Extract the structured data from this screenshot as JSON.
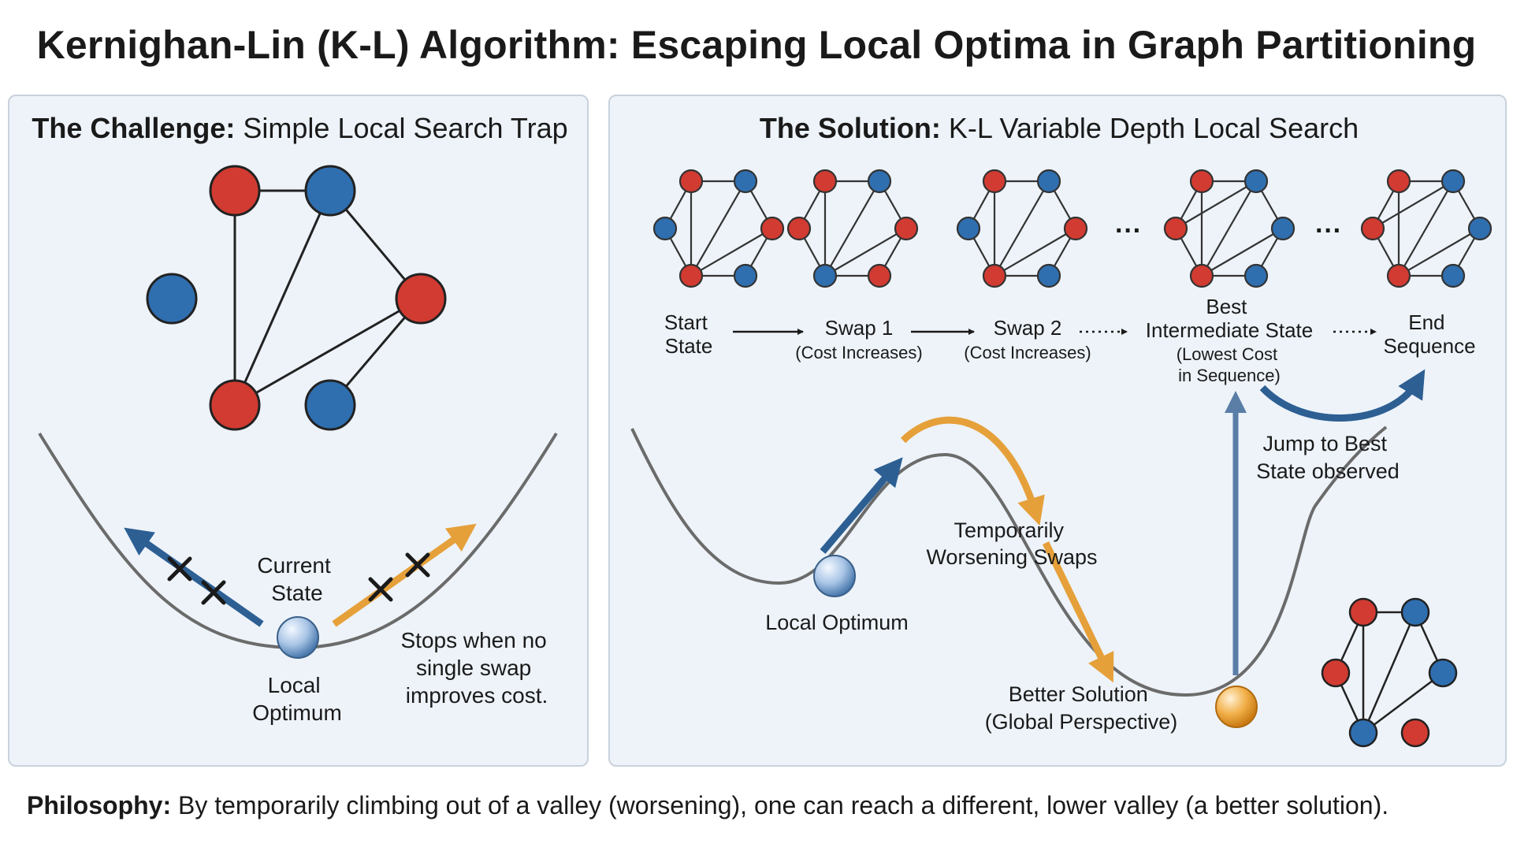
{
  "title": "Kernighan-Lin (K-L) Algorithm: Escaping Local Optima in Graph Partitioning",
  "left_panel": {
    "heading_bold": "The Challenge:",
    "heading_rest": " Simple Local Search Trap",
    "current_state": [
      "Current",
      "State"
    ],
    "local_optimum": [
      "Local",
      "Optimum"
    ],
    "stops_note": [
      "Stops when no",
      "single swap",
      "improves cost."
    ]
  },
  "right_panel": {
    "heading_bold": "The Solution:",
    "heading_rest": " K-L Variable Depth Local Search",
    "ellipsis": "···",
    "steps": {
      "start": [
        "Start",
        "State"
      ],
      "swap1": "Swap 1",
      "swap1_note": "(Cost Increases)",
      "swap2": "Swap 2",
      "swap2_note": "(Cost Increases)",
      "best": [
        "Best",
        "Intermediate State"
      ],
      "best_note": [
        "(Lowest Cost",
        "in Sequence)"
      ],
      "end": [
        "End",
        "Sequence"
      ]
    },
    "jump_label": [
      "Jump to Best",
      "State observed"
    ],
    "temp_label": [
      "Temporarily",
      "Worsening Swaps"
    ],
    "local_optimum": "Local Optimum",
    "better_solution": [
      "Better Solution",
      "(Global Perspective)"
    ]
  },
  "philosophy": {
    "bold": "Philosophy:",
    "text": " By temporarily climbing out of a valley (worsening), one can reach a different, lower valley (a better solution)."
  },
  "colors": {
    "red_node": "#d23b31",
    "blue_node": "#2f6fb0",
    "blue_arrow": "#2d5f93",
    "orange_arrow": "#e6a03a",
    "panel_bg": "#edf3f9",
    "curve": "#6b6b6b"
  }
}
